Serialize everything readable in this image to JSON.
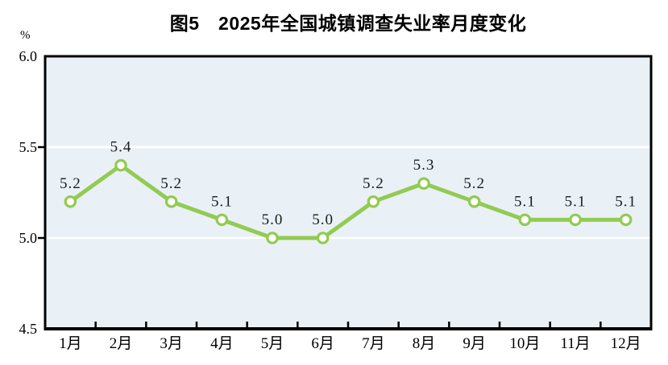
{
  "figure": {
    "title": "图5　2025年全国城镇调查失业率月度变化",
    "unit_label": "%"
  },
  "colors": {
    "line": "#92cb52",
    "marker_fill": "#ffffff",
    "plot_background": "#e9f1f6",
    "gridline": "#ffffff",
    "axis": "#000000",
    "label_text": "#1a1a1a"
  },
  "chart_data": {
    "type": "line",
    "title": "图5　2025年全国城镇调查失业率月度变化",
    "categories": [
      "1月",
      "2月",
      "3月",
      "4月",
      "5月",
      "6月",
      "7月",
      "8月",
      "9月",
      "10月",
      "11月",
      "12月"
    ],
    "values": [
      5.2,
      5.4,
      5.2,
      5.1,
      5.0,
      5.0,
      5.2,
      5.3,
      5.2,
      5.1,
      5.1,
      5.1
    ],
    "xlabel": "",
    "ylabel": "%",
    "ylim": [
      4.5,
      6.0
    ],
    "yticks": [
      4.5,
      5.0,
      5.5,
      6.0
    ],
    "ytick_decimals": 1,
    "data_label_decimals": 1,
    "grid": "horizontal",
    "legend": "none",
    "marker": "circle",
    "data_labels": true
  }
}
